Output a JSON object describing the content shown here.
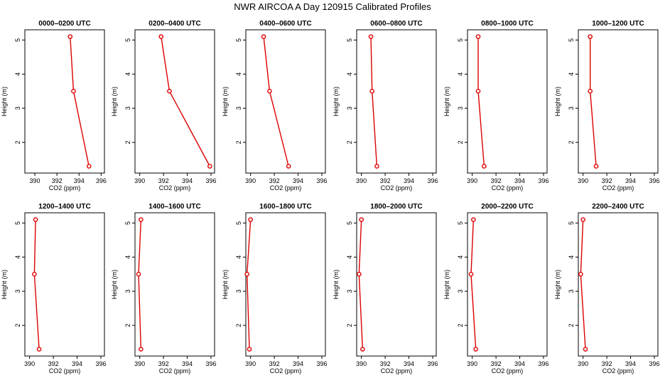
{
  "title": "NWR AIRCOA A  Day 120915  Calibrated Profiles",
  "axes": {
    "xlabel": "CO2 (ppm)",
    "ylabel": "Height (m)",
    "xticks": [
      390,
      392,
      394,
      396
    ],
    "yticks": [
      2,
      3,
      4,
      5
    ]
  },
  "chart_data": [
    {
      "type": "line",
      "title": "0000–0200 UTC",
      "xlim": [
        389.1,
        396.3
      ],
      "ylim": [
        1.1,
        5.3
      ],
      "x": [
        393.2,
        393.5,
        394.9
      ],
      "y": [
        5.1,
        3.5,
        1.3
      ]
    },
    {
      "type": "line",
      "title": "0200–0400 UTC",
      "xlim": [
        389.6,
        396.3
      ],
      "ylim": [
        1.1,
        5.3
      ],
      "x": [
        391.8,
        392.5,
        395.9
      ],
      "y": [
        5.1,
        3.5,
        1.3
      ]
    },
    {
      "type": "line",
      "title": "0400–0600 UTC",
      "xlim": [
        389.6,
        396.3
      ],
      "ylim": [
        1.1,
        5.3
      ],
      "x": [
        391.1,
        391.6,
        393.2
      ],
      "y": [
        5.1,
        3.5,
        1.3
      ]
    },
    {
      "type": "line",
      "title": "0600–0800 UTC",
      "xlim": [
        389.6,
        396.3
      ],
      "ylim": [
        1.1,
        5.3
      ],
      "x": [
        390.8,
        390.9,
        391.3
      ],
      "y": [
        5.1,
        3.5,
        1.3
      ]
    },
    {
      "type": "line",
      "title": "0800–1000 UTC",
      "xlim": [
        389.6,
        396.3
      ],
      "ylim": [
        1.1,
        5.3
      ],
      "x": [
        390.5,
        390.5,
        391.0
      ],
      "y": [
        5.1,
        3.5,
        1.3
      ]
    },
    {
      "type": "line",
      "title": "1000–1200 UTC",
      "xlim": [
        389.6,
        396.3
      ],
      "ylim": [
        1.1,
        5.3
      ],
      "x": [
        390.6,
        390.6,
        391.1
      ],
      "y": [
        5.1,
        3.5,
        1.3
      ]
    },
    {
      "type": "line",
      "title": "1200–1400 UTC",
      "xlim": [
        389.6,
        396.3
      ],
      "ylim": [
        1.1,
        5.3
      ],
      "x": [
        390.5,
        390.4,
        390.8
      ],
      "y": [
        5.1,
        3.5,
        1.3
      ]
    },
    {
      "type": "line",
      "title": "1400–1600 UTC",
      "xlim": [
        389.6,
        396.3
      ],
      "ylim": [
        1.1,
        5.3
      ],
      "x": [
        390.1,
        389.9,
        390.1
      ],
      "y": [
        5.1,
        3.5,
        1.3
      ]
    },
    {
      "type": "line",
      "title": "1600–1800 UTC",
      "xlim": [
        389.6,
        396.3
      ],
      "ylim": [
        1.1,
        5.3
      ],
      "x": [
        390.0,
        389.7,
        389.9
      ],
      "y": [
        5.1,
        3.5,
        1.3
      ]
    },
    {
      "type": "line",
      "title": "1800–2000 UTC",
      "xlim": [
        389.6,
        396.3
      ],
      "ylim": [
        1.1,
        5.3
      ],
      "x": [
        390.0,
        389.8,
        390.1
      ],
      "y": [
        5.1,
        3.5,
        1.3
      ]
    },
    {
      "type": "line",
      "title": "2000–2200 UTC",
      "xlim": [
        389.6,
        396.3
      ],
      "ylim": [
        1.1,
        5.3
      ],
      "x": [
        390.1,
        389.9,
        390.3
      ],
      "y": [
        5.1,
        3.5,
        1.3
      ]
    },
    {
      "type": "line",
      "title": "2200–2400 UTC",
      "xlim": [
        389.6,
        396.3
      ],
      "ylim": [
        1.1,
        5.3
      ],
      "x": [
        390.0,
        389.8,
        390.2
      ],
      "y": [
        5.1,
        3.5,
        1.3
      ]
    }
  ]
}
